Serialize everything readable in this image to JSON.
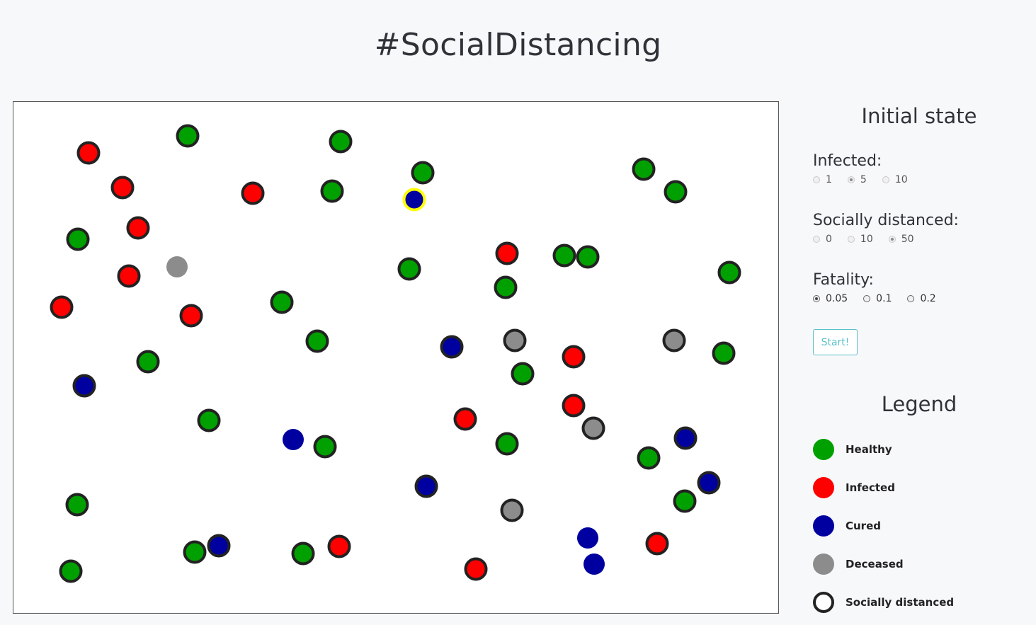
{
  "page": {
    "title": "#SocialDistancing"
  },
  "initial_state": {
    "heading": "Initial state",
    "infected": {
      "label": "Infected:",
      "options": [
        "1",
        "5",
        "10"
      ],
      "selected": "5"
    },
    "socially_distanced": {
      "label": "Socially distanced:",
      "options": [
        "0",
        "10",
        "50"
      ],
      "selected": "50"
    },
    "fatality": {
      "label": "Fatality:",
      "options": [
        "0.05",
        "0.1",
        "0.2"
      ],
      "selected": "0.05"
    },
    "start_label": "Start!"
  },
  "legend": {
    "heading": "Legend",
    "items": [
      {
        "label": "Healthy",
        "color": "#00a000",
        "style": "fill"
      },
      {
        "label": "Infected",
        "color": "#ff0000",
        "style": "fill"
      },
      {
        "label": "Cured",
        "color": "#0000a0",
        "style": "fill"
      },
      {
        "label": "Deceased",
        "color": "#8c8c8c",
        "style": "fill"
      },
      {
        "label": "Socially distanced",
        "color": "#222222",
        "style": "ring"
      }
    ]
  },
  "colors": {
    "healthy": "#00a000",
    "infected": "#ff0000",
    "cured": "#0000a0",
    "deceased": "#8c8c8c",
    "distanced_ring": "#222222",
    "highlight_ring": "#ffff00"
  }
}
